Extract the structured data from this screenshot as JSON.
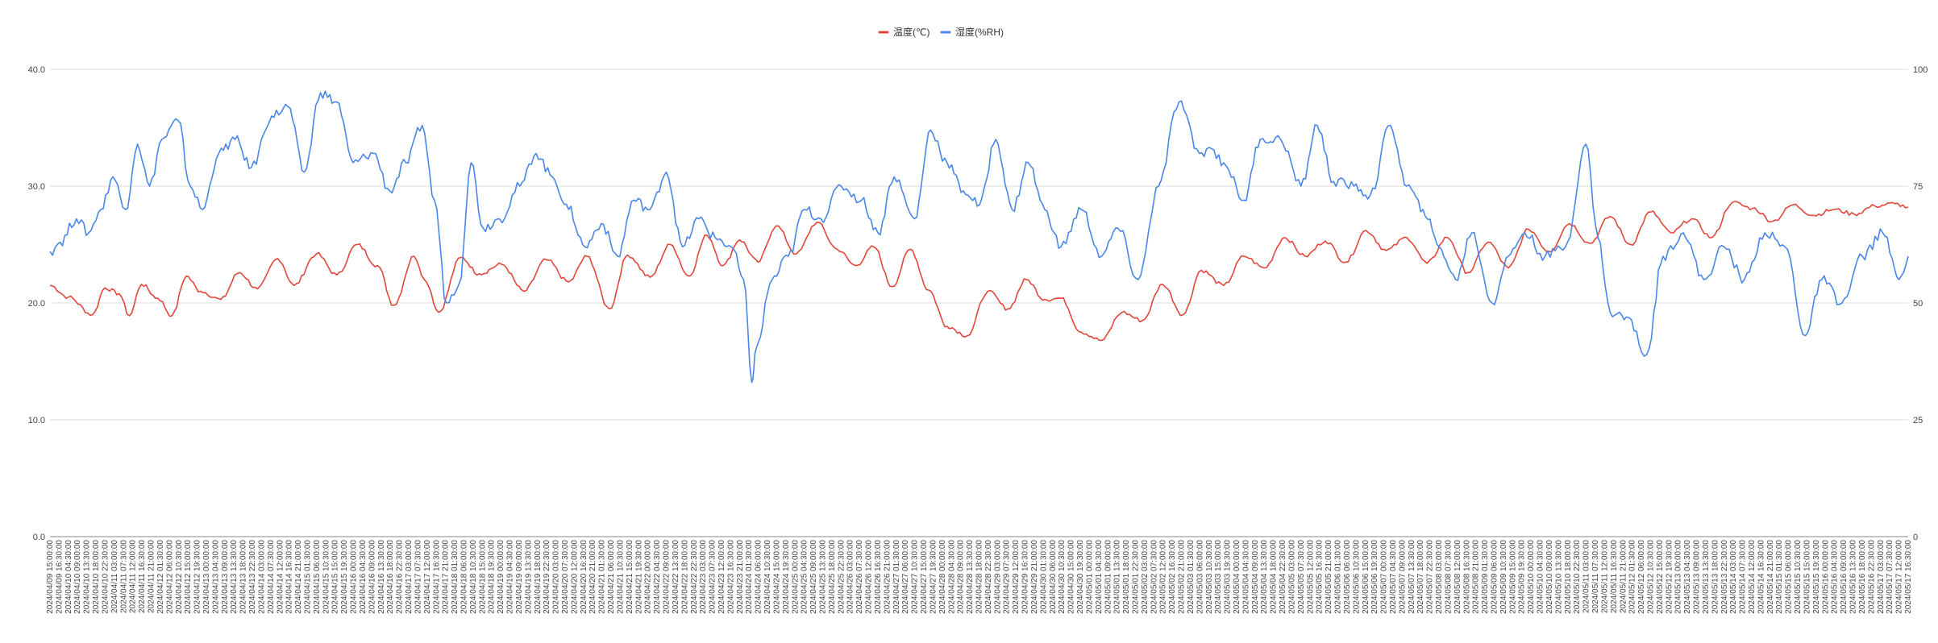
{
  "chart_data": {
    "type": "line",
    "title": "",
    "xlabel": "",
    "legend_position": "top-center",
    "grid": true,
    "y_left": {
      "min": 0,
      "max": 40,
      "ticks": [
        "0.0",
        "10.0",
        "20.0",
        "30.0",
        "40.0"
      ]
    },
    "y_right": {
      "min": 0,
      "max": 100,
      "ticks": [
        "0",
        "25",
        "50",
        "75",
        "100"
      ]
    },
    "x_range": [
      "2024/04/09 15:00",
      "2024/05/17 16:30"
    ],
    "x_ticks": [
      "2024/04/09 15:00:00",
      "2024/04/09 16:30:00",
      "2024/04/10 04:30:00",
      "2024/04/10 09:00:00",
      "2024/04/10 13:30:00",
      "2024/04/10 18:00:00",
      "2024/04/10 22:30:00",
      "2024/04/11 03:00:00",
      "2024/04/11 07:30:00",
      "2024/04/11 12:00:00",
      "2024/04/11 16:30:00",
      "2024/04/11 21:00:00",
      "2024/04/12 01:30:00",
      "2024/04/12 06:00:00",
      "2024/04/12 10:30:00",
      "2024/04/12 15:00:00",
      "2024/04/12 19:30:00",
      "2024/04/13 00:00:00",
      "2024/04/13 04:30:00",
      "2024/04/13 09:00:00",
      "2024/04/13 13:30:00",
      "2024/04/13 18:00:00",
      "2024/04/13 22:30:00",
      "2024/04/14 03:00:00",
      "2024/04/14 07:30:00",
      "2024/04/14 12:00:00",
      "2024/04/14 16:30:00",
      "2024/04/14 21:00:00",
      "2024/04/15 01:30:00",
      "2024/04/15 06:00:00",
      "2024/04/15 10:30:00",
      "2024/04/15 15:00:00",
      "2024/04/15 19:30:00",
      "2024/04/16 00:00:00",
      "2024/04/16 04:30:00",
      "2024/04/16 09:00:00",
      "2024/04/16 13:30:00",
      "2024/04/16 18:00:00",
      "2024/04/16 22:30:00",
      "2024/04/17 03:00:00",
      "2024/04/17 07:30:00",
      "2024/04/17 12:00:00",
      "2024/04/17 16:30:00",
      "2024/04/17 21:00:00",
      "2024/04/18 01:30:00",
      "2024/04/18 06:00:00",
      "2024/04/18 10:30:00",
      "2024/04/18 15:00:00",
      "2024/04/18 19:30:00",
      "2024/04/19 00:00:00",
      "2024/04/19 04:30:00",
      "2024/04/19 09:00:00",
      "2024/04/19 13:30:00",
      "2024/04/19 18:00:00",
      "2024/04/19 22:30:00",
      "2024/04/20 03:00:00",
      "2024/04/20 07:30:00",
      "2024/04/20 12:00:00",
      "2024/04/20 16:30:00",
      "2024/04/20 21:00:00",
      "2024/04/21 01:30:00",
      "2024/04/21 06:00:00",
      "2024/04/21 10:30:00",
      "2024/04/21 15:00:00",
      "2024/04/21 19:30:00",
      "2024/04/22 00:00:00",
      "2024/04/22 04:30:00",
      "2024/04/22 09:00:00",
      "2024/04/22 13:30:00",
      "2024/04/22 18:00:00",
      "2024/04/22 22:30:00",
      "2024/04/23 03:00:00",
      "2024/04/23 07:30:00",
      "2024/04/23 12:00:00",
      "2024/04/23 16:30:00",
      "2024/04/23 21:00:00",
      "2024/04/24 01:30:00",
      "2024/04/24 06:00:00",
      "2024/04/24 10:30:00",
      "2024/04/24 15:00:00",
      "2024/04/24 19:30:00",
      "2024/04/25 00:00:00",
      "2024/04/25 04:30:00",
      "2024/04/25 09:00:00",
      "2024/04/25 13:30:00",
      "2024/04/25 18:00:00",
      "2024/04/25 22:30:00",
      "2024/04/26 03:00:00",
      "2024/04/26 07:30:00",
      "2024/04/26 12:00:00",
      "2024/04/26 16:30:00",
      "2024/04/26 21:00:00",
      "2024/04/27 01:30:00",
      "2024/04/27 06:00:00",
      "2024/04/27 10:30:00",
      "2024/04/27 15:00:00",
      "2024/04/27 19:30:00",
      "2024/04/28 00:00:00",
      "2024/04/28 04:30:00",
      "2024/04/28 09:00:00",
      "2024/04/28 13:30:00",
      "2024/04/28 18:00:00",
      "2024/04/28 22:30:00",
      "2024/04/29 03:00:00",
      "2024/04/29 07:30:00",
      "2024/04/29 12:00:00",
      "2024/04/29 16:30:00",
      "2024/04/29 21:00:00",
      "2024/04/30 01:30:00",
      "2024/04/30 06:00:00",
      "2024/04/30 10:30:00",
      "2024/04/30 15:00:00",
      "2024/04/30 19:30:00",
      "2024/05/01 00:00:00",
      "2024/05/01 04:30:00",
      "2024/05/01 09:00:00",
      "2024/05/01 13:30:00",
      "2024/05/01 18:00:00",
      "2024/05/01 22:30:00",
      "2024/05/02 03:00:00",
      "2024/05/02 07:30:00",
      "2024/05/02 12:00:00",
      "2024/05/02 16:30:00",
      "2024/05/02 21:00:00",
      "2024/05/03 01:30:00",
      "2024/05/03 06:00:00",
      "2024/05/03 10:30:00",
      "2024/05/03 15:00:00",
      "2024/05/03 19:30:00",
      "2024/05/04 00:00:00",
      "2024/05/04 04:30:00",
      "2024/05/04 09:00:00",
      "2024/05/04 13:30:00",
      "2024/05/04 18:00:00",
      "2024/05/04 22:30:00",
      "2024/05/05 03:00:00",
      "2024/05/05 07:30:00",
      "2024/05/05 12:00:00",
      "2024/05/05 16:30:00",
      "2024/05/05 21:00:00",
      "2024/05/06 01:30:00",
      "2024/05/06 06:00:00",
      "2024/05/06 10:30:00",
      "2024/05/06 15:00:00",
      "2024/05/06 19:30:00",
      "2024/05/07 00:00:00",
      "2024/05/07 04:30:00",
      "2024/05/07 09:00:00",
      "2024/05/07 13:30:00",
      "2024/05/07 18:00:00",
      "2024/05/07 22:30:00",
      "2024/05/08 03:00:00",
      "2024/05/08 07:30:00",
      "2024/05/08 12:00:00",
      "2024/05/08 16:30:00",
      "2024/05/08 21:00:00",
      "2024/05/09 01:30:00",
      "2024/05/09 06:00:00",
      "2024/05/09 10:30:00",
      "2024/05/09 15:00:00",
      "2024/05/09 19:30:00",
      "2024/05/10 00:00:00",
      "2024/05/10 04:30:00",
      "2024/05/10 09:00:00",
      "2024/05/10 13:30:00",
      "2024/05/10 18:00:00",
      "2024/05/10 22:30:00",
      "2024/05/11 03:00:00",
      "2024/05/11 07:30:00",
      "2024/05/11 12:00:00",
      "2024/05/11 16:30:00",
      "2024/05/11 21:00:00",
      "2024/05/12 01:30:00",
      "2024/05/12 06:00:00",
      "2024/05/12 10:30:00",
      "2024/05/12 15:00:00",
      "2024/05/12 19:30:00",
      "2024/05/13 00:00:00",
      "2024/05/13 04:30:00",
      "2024/05/13 09:00:00",
      "2024/05/13 13:30:00",
      "2024/05/13 18:00:00",
      "2024/05/13 22:30:00",
      "2024/05/14 03:00:00",
      "2024/05/14 07:30:00",
      "2024/05/14 12:00:00",
      "2024/05/14 16:30:00",
      "2024/05/14 21:00:00",
      "2024/05/15 01:30:00",
      "2024/05/15 06:00:00",
      "2024/05/15 10:30:00",
      "2024/05/15 15:00:00",
      "2024/05/15 19:30:00",
      "2024/05/16 00:00:00",
      "2024/05/16 04:30:00",
      "2024/05/16 09:00:00",
      "2024/05/16 13:30:00",
      "2024/05/16 18:00:00",
      "2024/05/16 22:30:00",
      "2024/05/17 03:00:00",
      "2024/05/17 07:30:00",
      "2024/05/17 12:00:00",
      "2024/05/17 16:30:00"
    ],
    "series": [
      {
        "name": "温度(℃)",
        "axis": "left",
        "color": "#e2463a",
        "x": [
          "2024/04/09 15:00",
          "2024/04/10 00:00",
          "2024/04/10 12:00",
          "2024/04/10 18:00",
          "2024/04/11 01:00",
          "2024/04/11 06:00",
          "2024/04/11 12:00",
          "2024/04/11 20:00",
          "2024/04/12 03:00",
          "2024/04/12 10:00",
          "2024/04/12 17:00",
          "2024/04/13 03:00",
          "2024/04/13 12:00",
          "2024/04/13 21:00",
          "2024/04/14 07:00",
          "2024/04/14 15:00",
          "2024/04/15 02:00",
          "2024/04/15 12:00",
          "2024/04/15 22:00",
          "2024/04/16 08:00",
          "2024/04/16 16:00",
          "2024/04/17 02:00",
          "2024/04/17 08:00",
          "2024/04/17 14:00",
          "2024/04/18 01:00",
          "2024/04/18 10:00",
          "2024/04/18 21:00",
          "2024/04/19 08:00",
          "2024/04/19 19:00",
          "2024/04/20 06:00",
          "2024/04/20 15:00",
          "2024/04/21 02:00",
          "2024/04/21 11:00",
          "2024/04/21 22:00",
          "2024/04/22 08:00",
          "2024/04/22 17:00",
          "2024/04/23 02:00",
          "2024/04/23 10:00",
          "2024/04/23 18:00",
          "2024/04/24 03:00",
          "2024/04/24 12:00",
          "2024/04/24 22:00",
          "2024/04/25 08:00",
          "2024/04/25 18:00",
          "2024/04/26 03:00",
          "2024/04/26 12:00",
          "2024/04/26 21:00",
          "2024/04/27 06:00",
          "2024/04/27 15:00",
          "2024/04/28 00:00",
          "2024/04/28 10:00",
          "2024/04/28 20:00",
          "2024/04/29 06:00",
          "2024/04/29 15:00",
          "2024/04/30 00:00",
          "2024/04/30 08:00",
          "2024/04/30 18:00",
          "2024/05/01 04:00",
          "2024/05/01 14:00",
          "2024/05/02 00:00",
          "2024/05/02 10:00",
          "2024/05/02 20:00",
          "2024/05/03 05:00",
          "2024/05/03 16:00",
          "2024/05/04 02:00",
          "2024/05/04 12:00",
          "2024/05/04 22:00",
          "2024/05/05 08:00",
          "2024/05/05 18:00",
          "2024/05/06 04:00",
          "2024/05/06 14:00",
          "2024/05/07 00:00",
          "2024/05/07 10:00",
          "2024/05/07 20:00",
          "2024/05/08 06:00",
          "2024/05/08 16:00",
          "2024/05/09 02:00",
          "2024/05/09 12:00",
          "2024/05/09 22:00",
          "2024/05/10 08:00",
          "2024/05/10 18:00",
          "2024/05/11 04:00",
          "2024/05/11 14:00",
          "2024/05/12 00:00",
          "2024/05/12 10:00",
          "2024/05/12 20:00",
          "2024/05/13 06:00",
          "2024/05/13 16:00",
          "2024/05/14 02:00",
          "2024/05/14 12:00",
          "2024/05/14 22:00",
          "2024/05/15 08:00",
          "2024/05/15 18:00",
          "2024/05/16 04:00",
          "2024/05/16 14:00",
          "2024/05/17 00:00",
          "2024/05/17 10:00",
          "2024/05/17 16:30"
        ],
        "values": [
          21.5,
          20.5,
          19.0,
          21.3,
          20.8,
          18.9,
          21.6,
          20.4,
          18.9,
          22.3,
          21.0,
          20.3,
          22.6,
          21.2,
          23.8,
          21.5,
          24.2,
          22.4,
          25.0,
          23.2,
          19.8,
          24.0,
          21.8,
          19.2,
          23.9,
          22.5,
          23.3,
          21.0,
          23.7,
          21.8,
          24.0,
          19.5,
          24.1,
          22.2,
          25.0,
          22.3,
          25.8,
          23.2,
          25.4,
          23.5,
          26.6,
          24.2,
          26.9,
          24.6,
          23.2,
          24.8,
          21.4,
          24.6,
          21.1,
          18.0,
          17.2,
          21.0,
          19.5,
          22.0,
          20.3,
          20.4,
          17.5,
          16.8,
          19.2,
          18.5,
          21.6,
          19.0,
          22.8,
          21.5,
          24.0,
          23.0,
          25.6,
          24.0,
          25.3,
          23.5,
          26.2,
          24.5,
          25.6,
          23.4,
          25.6,
          22.6,
          25.2,
          23.0,
          26.3,
          24.4,
          26.8,
          25.1,
          27.4,
          25.0,
          27.8,
          26.0,
          27.2,
          25.6,
          28.6,
          28.1,
          27.0,
          28.4,
          27.5,
          28.0,
          27.6,
          28.3,
          28.5,
          28.2
        ]
      },
      {
        "name": "湿度(%RH)",
        "axis": "right",
        "color": "#4a86e8",
        "x": [
          "2024/04/09 15:00",
          "2024/04/09 20:00",
          "2024/04/10 04:00",
          "2024/04/10 10:00",
          "2024/04/10 16:00",
          "2024/04/10 22:00",
          "2024/04/11 04:00",
          "2024/04/11 10:00",
          "2024/04/11 16:00",
          "2024/04/11 22:00",
          "2024/04/12 06:00",
          "2024/04/12 12:00",
          "2024/04/12 18:00",
          "2024/04/13 02:00",
          "2024/04/13 10:00",
          "2024/04/13 18:00",
          "2024/04/14 04:00",
          "2024/04/14 12:00",
          "2024/04/14 20:00",
          "2024/04/15 04:00",
          "2024/04/15 12:00",
          "2024/04/15 20:00",
          "2024/04/16 06:00",
          "2024/04/16 14:00",
          "2024/04/16 22:00",
          "2024/04/17 06:00",
          "2024/04/17 12:00",
          "2024/04/17 18:00",
          "2024/04/18 00:00",
          "2024/04/18 06:00",
          "2024/04/18 12:00",
          "2024/04/18 20:00",
          "2024/04/19 06:00",
          "2024/04/19 14:00",
          "2024/04/19 22:00",
          "2024/04/20 06:00",
          "2024/04/20 14:00",
          "2024/04/20 22:00",
          "2024/04/21 06:00",
          "2024/04/21 14:00",
          "2024/04/21 22:00",
          "2024/04/22 06:00",
          "2024/04/22 14:00",
          "2024/04/22 22:00",
          "2024/04/23 06:00",
          "2024/04/23 14:00",
          "2024/04/23 20:00",
          "2024/04/24 00:00",
          "2024/04/24 02:00",
          "2024/04/24 10:00",
          "2024/04/24 18:00",
          "2024/04/25 02:00",
          "2024/04/25 10:00",
          "2024/04/25 20:00",
          "2024/04/26 06:00",
          "2024/04/26 14:00",
          "2024/04/26 22:00",
          "2024/04/27 08:00",
          "2024/04/27 16:00",
          "2024/04/28 00:00",
          "2024/04/28 08:00",
          "2024/04/28 16:00",
          "2024/04/29 00:00",
          "2024/04/29 08:00",
          "2024/04/29 16:00",
          "2024/04/30 00:00",
          "2024/04/30 08:00",
          "2024/04/30 18:00",
          "2024/05/01 04:00",
          "2024/05/01 12:00",
          "2024/05/01 22:00",
          "2024/05/02 08:00",
          "2024/05/02 18:00",
          "2024/05/03 04:00",
          "2024/05/03 10:00",
          "2024/05/03 16:00",
          "2024/05/04 02:00",
          "2024/05/04 10:00",
          "2024/05/04 20:00",
          "2024/05/05 06:00",
          "2024/05/05 14:00",
          "2024/05/05 22:00",
          "2024/05/06 08:00",
          "2024/05/06 16:00",
          "2024/05/07 02:00",
          "2024/05/07 10:00",
          "2024/05/07 18:00",
          "2024/05/08 02:00",
          "2024/05/08 10:00",
          "2024/05/08 18:00",
          "2024/05/09 04:00",
          "2024/05/09 12:00",
          "2024/05/09 20:00",
          "2024/05/10 06:00",
          "2024/05/10 16:00",
          "2024/05/11 02:00",
          "2024/05/11 08:00",
          "2024/05/11 14:00",
          "2024/05/11 22:00",
          "2024/05/12 08:00",
          "2024/05/12 16:00",
          "2024/05/13 02:00",
          "2024/05/13 12:00",
          "2024/05/13 22:00",
          "2024/05/14 08:00",
          "2024/05/14 18:00",
          "2024/05/15 04:00",
          "2024/05/15 14:00",
          "2024/05/15 22:00",
          "2024/05/16 08:00",
          "2024/05/16 18:00",
          "2024/05/17 04:00",
          "2024/05/17 12:00",
          "2024/05/17 16:30"
        ],
        "values": [
          61,
          63,
          68,
          65,
          70,
          77,
          70,
          84,
          75,
          85,
          89,
          75,
          70,
          82,
          85,
          79,
          90,
          92,
          78,
          95,
          93,
          80,
          82,
          74,
          80,
          88,
          72,
          50,
          54,
          80,
          66,
          68,
          75,
          82,
          77,
          70,
          62,
          67,
          60,
          72,
          70,
          78,
          62,
          68,
          64,
          62,
          55,
          33,
          40,
          55,
          60,
          70,
          68,
          75,
          72,
          65,
          77,
          68,
          87,
          80,
          74,
          71,
          85,
          70,
          80,
          70,
          62,
          70,
          60,
          66,
          55,
          75,
          93,
          82,
          83,
          80,
          72,
          85,
          85,
          75,
          88,
          76,
          75,
          73,
          88,
          75,
          70,
          62,
          55,
          65,
          50,
          60,
          65,
          60,
          62,
          84,
          64,
          48,
          47,
          39,
          60,
          65,
          55,
          62,
          55,
          65,
          62,
          43,
          55,
          50,
          60,
          65,
          55,
          60
        ]
      }
    ]
  }
}
